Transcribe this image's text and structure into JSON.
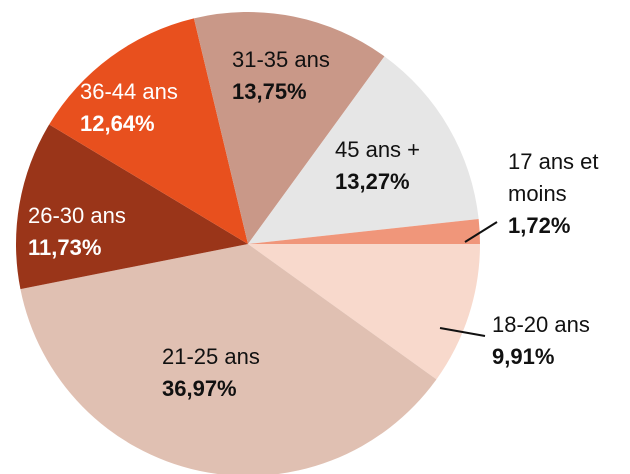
{
  "chart_data": {
    "type": "pie",
    "categories": [
      "18-20 ans",
      "21-25 ans",
      "26-30 ans",
      "36-44 ans",
      "31-35 ans",
      "45 ans +",
      "17 ans et moins"
    ],
    "values": [
      9.91,
      36.97,
      11.73,
      12.64,
      13.75,
      13.27,
      1.72
    ],
    "value_labels": [
      "9,91%",
      "36,97%",
      "11,73%",
      "12,64%",
      "13,75%",
      "13,27%",
      "1,72%"
    ],
    "colors": [
      "#f8d9cc",
      "#e0c0b2",
      "#9a3519",
      "#e8501e",
      "#c99888",
      "#e6e6e6",
      "#f0967a"
    ]
  }
}
